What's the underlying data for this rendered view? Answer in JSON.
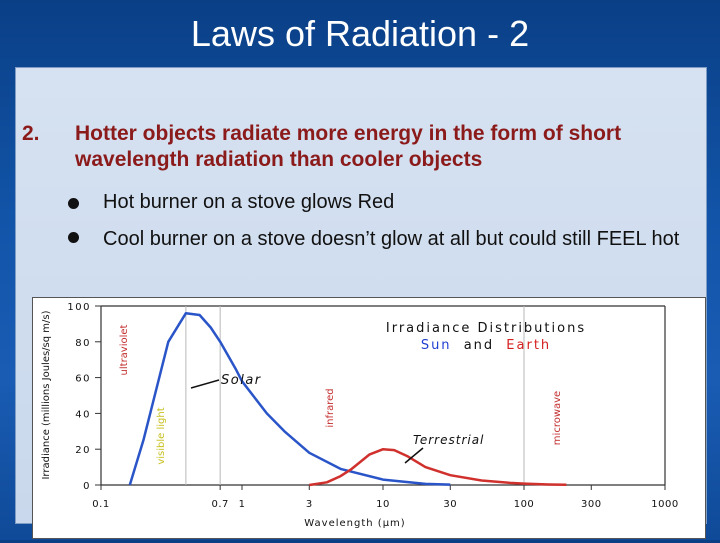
{
  "slide": {
    "title": "Laws of Radiation - 2",
    "point_number": "2.",
    "point_text": "Hotter objects radiate more energy in the form of short wavelength radiation than cooler objects",
    "bullets": [
      "Hot burner on a stove glows Red",
      "Cool burner on a stove doesn’t glow at all but could still FEEL hot"
    ]
  },
  "colors": {
    "title_text": "#ffffff",
    "point_text": "#8b1a1a",
    "solar_curve": "#2a55c8",
    "terrestrial_curve": "#d0312d",
    "sun_word": "#1f3fd1",
    "earth_word": "#d52020",
    "region_label": "#c43030",
    "visible_label": "#c8c020"
  },
  "chart_data": {
    "type": "line",
    "title_line1": "Irradiance Distributions",
    "title_sun": "Sun",
    "title_and": "and",
    "title_earth": "Earth",
    "xlabel": "Wavelength (μm)",
    "ylabel": "Irradiance (millions Joules/sq m/s)",
    "x_scale": "log",
    "xlim": [
      0.1,
      1000
    ],
    "ylim": [
      0,
      100
    ],
    "x_ticks": [
      0.1,
      0.7,
      1,
      3,
      10,
      30,
      100,
      300,
      1000
    ],
    "x_tick_labels": [
      "0.1",
      "0.7",
      "1",
      "3",
      "10",
      "30",
      "100",
      "300",
      "1000"
    ],
    "y_ticks": [
      0,
      20,
      40,
      60,
      80,
      100
    ],
    "y_tick_labels": [
      "0",
      "20",
      "40",
      "60",
      "80",
      "100"
    ],
    "region_labels": [
      "ultraviolet",
      "visible light",
      "infrared",
      "microwave"
    ],
    "series": [
      {
        "name": "Solar",
        "x": [
          0.16,
          0.2,
          0.3,
          0.4,
          0.5,
          0.6,
          0.7,
          0.9,
          1,
          1.5,
          2,
          3,
          5,
          10,
          20,
          30
        ],
        "y": [
          0,
          25,
          80,
          96,
          95,
          88,
          80,
          65,
          58,
          40,
          30,
          18,
          9,
          3,
          0.6,
          0.2
        ]
      },
      {
        "name": "Terrestrial",
        "x": [
          3,
          4,
          5,
          6,
          8,
          10,
          12,
          15,
          20,
          30,
          50,
          80,
          100,
          150,
          200
        ],
        "y": [
          0,
          1.5,
          5,
          9,
          17,
          20,
          19.5,
          16,
          10,
          5.5,
          2.5,
          1.2,
          0.8,
          0.3,
          0.1
        ]
      }
    ]
  }
}
